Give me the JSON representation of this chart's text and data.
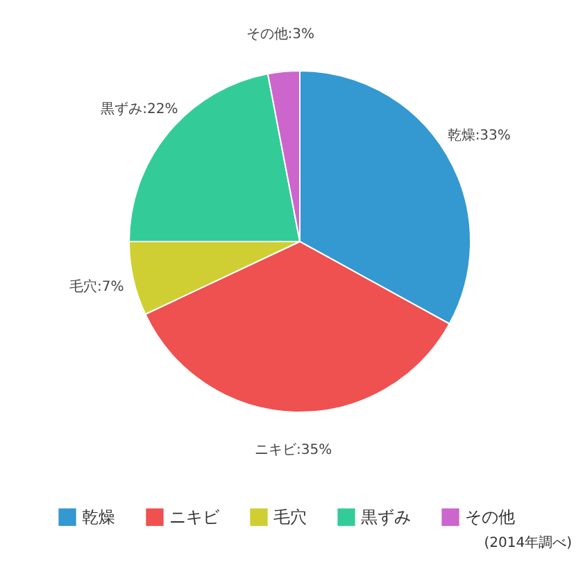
{
  "chart_data": {
    "type": "pie",
    "categories": [
      "乾燥",
      "ニキビ",
      "毛穴",
      "黒ずみ",
      "その他"
    ],
    "values": [
      33,
      35,
      7,
      22,
      3
    ],
    "colors": [
      "#3498d1",
      "#ef5050",
      "#cfcf33",
      "#33cc99",
      "#cc66cc"
    ],
    "value_labels": [
      "乾燥:33%",
      "ニキビ:35%",
      "毛穴:7%",
      "黒ずみ:22%",
      "その他:3%"
    ],
    "legend": "bottom",
    "annotations": [
      "(2014年調べ)"
    ]
  }
}
